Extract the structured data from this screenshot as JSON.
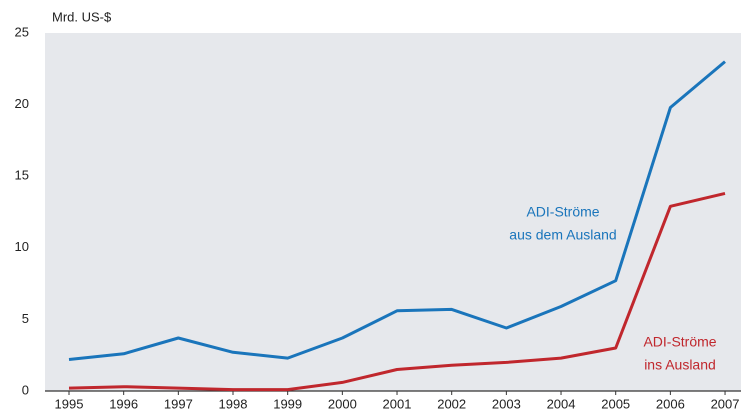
{
  "chart_data": {
    "type": "line",
    "y_label": "Mrd. US-$",
    "categories": [
      "1995",
      "1996",
      "1997",
      "1998",
      "1999",
      "2000",
      "2001",
      "2002",
      "2003",
      "2004",
      "2005",
      "2006",
      "2007"
    ],
    "series": [
      {
        "label": [
          "ADI-Ströme",
          "aus dem Ausland"
        ],
        "color": "#1a75bb",
        "values": [
          2.2,
          2.6,
          3.7,
          2.7,
          2.3,
          3.7,
          5.6,
          5.7,
          4.4,
          5.9,
          7.7,
          19.8,
          23.0
        ]
      },
      {
        "label": [
          "ADI-Ströme",
          "ins Ausland"
        ],
        "color": "#c0272d",
        "values": [
          0.2,
          0.3,
          0.2,
          0.1,
          0.1,
          0.6,
          1.5,
          1.8,
          2.0,
          2.3,
          3.0,
          12.9,
          13.8
        ]
      }
    ],
    "ylim": [
      0,
      25
    ],
    "yticks": [
      0,
      5,
      10,
      15,
      20,
      25
    ],
    "grid": false
  }
}
